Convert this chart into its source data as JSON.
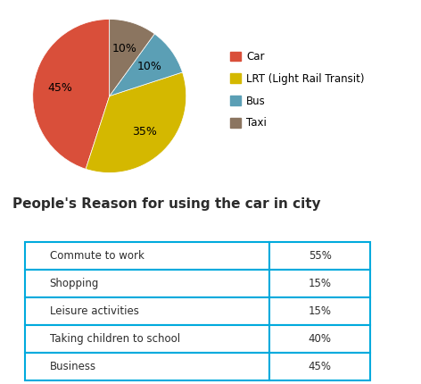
{
  "pie_labels": [
    "Car",
    "LRT (Light Rail Transit)",
    "Bus",
    "Taxi"
  ],
  "pie_values": [
    45,
    35,
    10,
    10
  ],
  "pie_colors": [
    "#d94f3a",
    "#d4b800",
    "#5b9fb5",
    "#8b7560"
  ],
  "legend_labels": [
    "Car",
    "LRT (Light Rail Transit)",
    "Bus",
    "Taxi"
  ],
  "table_title": "People's Reason for using the car in city",
  "table_rows": [
    [
      "Commute to work",
      "55%"
    ],
    [
      "Shopping",
      "15%"
    ],
    [
      "Leisure activities",
      "15%"
    ],
    [
      "Taking children to school",
      "40%"
    ],
    [
      "Business",
      "45%"
    ]
  ],
  "table_border_color": "#00aadd",
  "background_color": "#ffffff",
  "title_fontsize": 11,
  "pie_text_fontsize": 9,
  "legend_fontsize": 8.5,
  "table_fontsize": 8.5
}
